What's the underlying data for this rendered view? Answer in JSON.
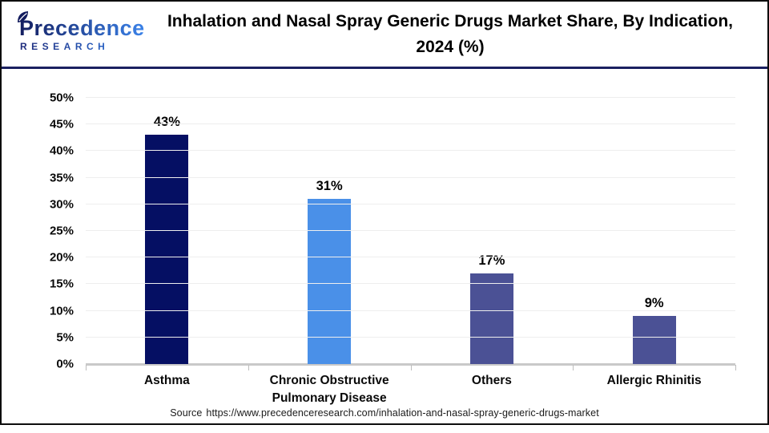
{
  "header": {
    "logo": {
      "name": "Precedence",
      "subtitle": "RESEARCH"
    },
    "title_line1": "Inhalation and Nasal Spray Generic Drugs Market Share, By Indication,",
    "title_line2": "2024 (%)"
  },
  "chart_data": {
    "type": "bar",
    "title": "Inhalation and Nasal Spray Generic Drugs Market Share, By Indication, 2024 (%)",
    "categories": [
      "Asthma",
      "Chronic Obstructive Pulmonary Disease",
      "Others",
      "Allergic Rhinitis"
    ],
    "values": [
      43,
      31,
      17,
      9
    ],
    "data_labels": [
      "43%",
      "31%",
      "17%",
      "9%"
    ],
    "unit": "%",
    "xlabel": "",
    "ylabel": "",
    "ylim": [
      0,
      50
    ],
    "ytick_step": 5,
    "ytick_labels": [
      "0%",
      "5%",
      "10%",
      "15%",
      "20%",
      "25%",
      "30%",
      "35%",
      "40%",
      "45%",
      "50%"
    ],
    "bar_colors": [
      "#050f63",
      "#4a90e8",
      "#4b5195",
      "#4b5195"
    ],
    "grid": true,
    "legend": "none"
  },
  "footer": {
    "source_label": "Source",
    "source_url": "https://www.precedenceresearch.com/inhalation-and-nasal-spray-generic-drugs-market"
  },
  "colors": {
    "divider": "#1b2160",
    "axis_line": "#c9c9c9",
    "gridline": "#eeeeee",
    "logo_dark": "#131c5e",
    "logo_blue": "#3b82e8",
    "bar_navy": "#050f63",
    "bar_blue": "#4a90e8",
    "bar_indigo": "#4b5195"
  }
}
